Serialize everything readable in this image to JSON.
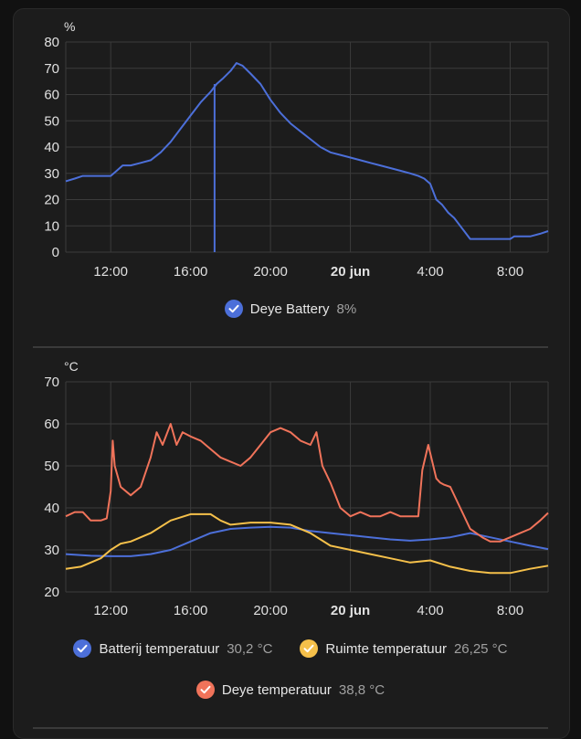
{
  "chart_data": [
    {
      "type": "line",
      "unit": "%",
      "ylim": [
        0,
        80
      ],
      "yticks": [
        "0",
        "10",
        "20",
        "30",
        "40",
        "50",
        "60",
        "70",
        "80"
      ],
      "xlim_hours": [
        9.75,
        33.9
      ],
      "xticks": [
        {
          "hour": 12,
          "label": "12:00",
          "bold": false
        },
        {
          "hour": 16,
          "label": "16:00",
          "bold": false
        },
        {
          "hour": 20,
          "label": "20:00",
          "bold": false
        },
        {
          "hour": 24,
          "label": "20 jun",
          "bold": true
        },
        {
          "hour": 28,
          "label": "4:00",
          "bold": false
        },
        {
          "hour": 32,
          "label": "8:00",
          "bold": false
        }
      ],
      "grid": true,
      "series": [
        {
          "name": "Deye Battery",
          "value": "8%",
          "color": "#4c6fd9",
          "x": [
            9.75,
            10.2,
            10.6,
            11.2,
            12.0,
            12.3,
            12.6,
            13.0,
            13.5,
            14.0,
            14.5,
            15.0,
            15.5,
            16.0,
            16.5,
            17.0,
            17.3,
            17.6,
            18.0,
            18.3,
            18.6,
            19.0,
            19.5,
            20.0,
            20.5,
            21.0,
            21.5,
            22.0,
            22.5,
            23.0,
            23.5,
            24.0,
            24.5,
            25.0,
            25.5,
            26.0,
            26.5,
            27.0,
            27.4,
            27.7,
            28.0,
            28.3,
            28.6,
            28.9,
            29.2,
            29.5,
            30.0,
            31.0,
            32.0,
            32.2,
            33.0,
            33.5,
            33.9
          ],
          "y": [
            27,
            28,
            29,
            29,
            29,
            31,
            33,
            33,
            34,
            35,
            38,
            42,
            47,
            52,
            57,
            61,
            64,
            66,
            69,
            72,
            71,
            68,
            64,
            58,
            53,
            49,
            46,
            43,
            40,
            38,
            37,
            36,
            35,
            34,
            33,
            32,
            31,
            30,
            29,
            28,
            26,
            20,
            18,
            15,
            13,
            10,
            5,
            5,
            5,
            6,
            6,
            7,
            8
          ],
          "spike": {
            "x": 17.2,
            "y_from": 0,
            "y_to": 64
          }
        }
      ]
    },
    {
      "type": "line",
      "unit": "°C",
      "ylim": [
        20,
        70
      ],
      "yticks": [
        "20",
        "30",
        "40",
        "50",
        "60",
        "70"
      ],
      "xlim_hours": [
        9.75,
        33.9
      ],
      "xticks": [
        {
          "hour": 12,
          "label": "12:00",
          "bold": false
        },
        {
          "hour": 16,
          "label": "16:00",
          "bold": false
        },
        {
          "hour": 20,
          "label": "20:00",
          "bold": false
        },
        {
          "hour": 24,
          "label": "20 jun",
          "bold": true
        },
        {
          "hour": 28,
          "label": "4:00",
          "bold": false
        },
        {
          "hour": 32,
          "label": "8:00",
          "bold": false
        }
      ],
      "grid": true,
      "series": [
        {
          "name": "Batterij temperatuur",
          "value": "30,2 °C",
          "color": "#4c6fd9",
          "x": [
            9.75,
            11,
            12,
            13,
            14,
            15,
            16,
            17,
            18,
            19,
            20,
            21,
            22,
            23,
            24,
            25,
            26,
            27,
            28,
            29,
            30,
            31,
            32,
            33,
            33.9
          ],
          "y": [
            29,
            28.6,
            28.5,
            28.5,
            29,
            30,
            32,
            34,
            35,
            35.3,
            35.5,
            35.3,
            34.5,
            34,
            33.5,
            33,
            32.5,
            32.2,
            32.5,
            33,
            34,
            33,
            32,
            31,
            30.2
          ]
        },
        {
          "name": "Ruimte temperatuur",
          "value": "26,25 °C",
          "color": "#f5c04a",
          "x": [
            9.75,
            10.5,
            11.5,
            12,
            12.5,
            13,
            14,
            15,
            16,
            17,
            17.5,
            18,
            19,
            20,
            21,
            22,
            23,
            24,
            25,
            26,
            27,
            28,
            29,
            30,
            31,
            32,
            33,
            33.9
          ],
          "y": [
            25.5,
            26,
            28,
            30,
            31.5,
            32,
            34,
            37,
            38.5,
            38.5,
            37,
            36,
            36.5,
            36.5,
            36,
            34,
            31,
            30,
            29,
            28,
            27,
            27.5,
            26,
            25,
            24.5,
            24.5,
            25.5,
            26.25
          ]
        },
        {
          "name": "Deye temperatuur",
          "value": "38,8 °C",
          "color": "#f0735a",
          "x": [
            9.75,
            10.2,
            10.6,
            11,
            11.5,
            11.8,
            12,
            12.1,
            12.2,
            12.5,
            13,
            13.5,
            14,
            14.3,
            14.6,
            15,
            15.3,
            15.6,
            16,
            16.5,
            17,
            17.5,
            18,
            18.5,
            19,
            19.5,
            20,
            20.5,
            21,
            21.5,
            22,
            22.3,
            22.6,
            23,
            23.5,
            24,
            24.5,
            25,
            25.5,
            26,
            26.5,
            27,
            27.4,
            27.6,
            27.9,
            28.3,
            28.5,
            28.7,
            29,
            29.5,
            30,
            30.3,
            30.6,
            31,
            31.5,
            32,
            32.5,
            33,
            33.5,
            33.9
          ],
          "y": [
            38,
            39,
            39,
            37,
            37,
            37.5,
            44,
            56,
            50,
            45,
            43,
            45,
            52,
            58,
            55,
            60,
            55,
            58,
            57,
            56,
            54,
            52,
            51,
            50,
            52,
            55,
            58,
            59,
            58,
            56,
            55,
            58,
            50,
            46,
            40,
            38,
            39,
            38,
            38,
            39,
            38,
            38,
            38,
            49,
            55,
            47,
            46,
            45.5,
            45,
            40,
            35,
            34,
            33,
            32,
            32,
            33,
            34,
            35,
            37,
            38.8
          ]
        }
      ]
    }
  ]
}
